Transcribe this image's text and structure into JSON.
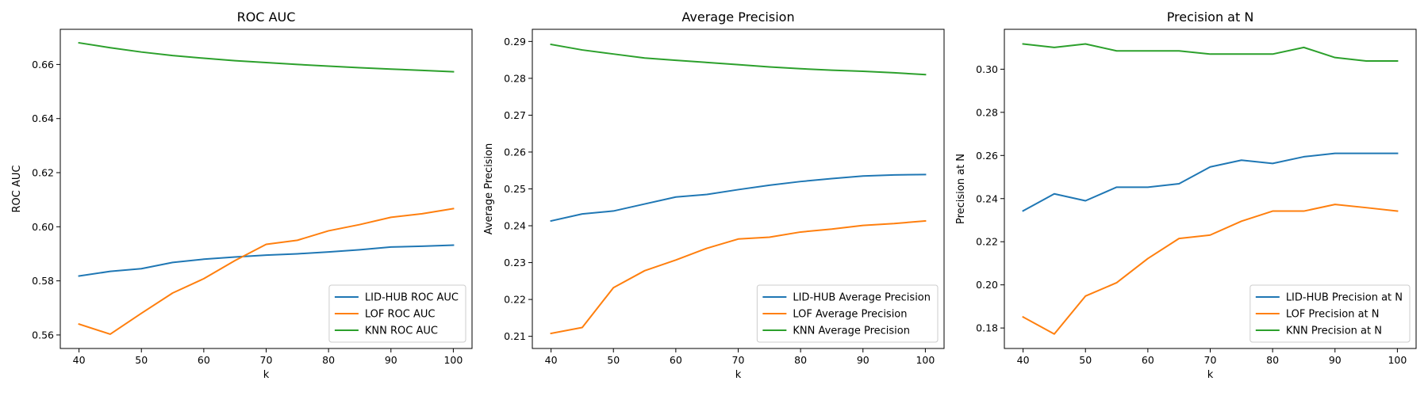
{
  "chart_data": [
    {
      "type": "line",
      "title": "ROC AUC",
      "xlabel": "k",
      "ylabel": "ROC AUC",
      "x": [
        40,
        45,
        50,
        55,
        60,
        65,
        70,
        75,
        80,
        85,
        90,
        95,
        100
      ],
      "xlim": [
        37,
        103
      ],
      "ylim": [
        0.555,
        0.673
      ],
      "xticks": [
        40,
        50,
        60,
        70,
        80,
        90,
        100
      ],
      "yticks": [
        0.56,
        0.58,
        0.6,
        0.62,
        0.64,
        0.66
      ],
      "ytick_labels": [
        "0.56",
        "0.58",
        "0.60",
        "0.62",
        "0.64",
        "0.66"
      ],
      "grid": false,
      "legend": "lower-right",
      "series": [
        {
          "name": "LID-HUB ROC AUC",
          "color": "#1f77b4",
          "values": [
            0.5818,
            0.5835,
            0.5845,
            0.5868,
            0.588,
            0.5888,
            0.5895,
            0.59,
            0.5907,
            0.5915,
            0.5925,
            0.5928,
            0.5932
          ]
        },
        {
          "name": "LOF ROC AUC",
          "color": "#ff7f0e",
          "values": [
            0.564,
            0.5603,
            0.568,
            0.5755,
            0.5808,
            0.5875,
            0.5935,
            0.595,
            0.5985,
            0.6008,
            0.6035,
            0.6048,
            0.6067
          ]
        },
        {
          "name": "KNN ROC AUC",
          "color": "#2ca02c",
          "values": [
            0.668,
            0.6662,
            0.6646,
            0.6633,
            0.6623,
            0.6614,
            0.6607,
            0.66,
            0.6594,
            0.6588,
            0.6583,
            0.6578,
            0.6573
          ]
        }
      ]
    },
    {
      "type": "line",
      "title": "Average Precision",
      "xlabel": "k",
      "ylabel": "Average Precision",
      "x": [
        40,
        45,
        50,
        55,
        60,
        65,
        70,
        75,
        80,
        85,
        90,
        95,
        100
      ],
      "xlim": [
        37,
        103
      ],
      "ylim": [
        0.2067,
        0.2933
      ],
      "xticks": [
        40,
        50,
        60,
        70,
        80,
        90,
        100
      ],
      "yticks": [
        0.21,
        0.22,
        0.23,
        0.24,
        0.25,
        0.26,
        0.27,
        0.28,
        0.29
      ],
      "ytick_labels": [
        "0.21",
        "0.22",
        "0.23",
        "0.24",
        "0.25",
        "0.26",
        "0.27",
        "0.28",
        "0.29"
      ],
      "grid": false,
      "legend": "lower-right",
      "series": [
        {
          "name": "LID-HUB Average Precision",
          "color": "#1f77b4",
          "values": [
            0.2413,
            0.2432,
            0.244,
            0.2459,
            0.2478,
            0.2485,
            0.2498,
            0.251,
            0.252,
            0.2528,
            0.2535,
            0.2538,
            0.2539
          ]
        },
        {
          "name": "LOF Average Precision",
          "color": "#ff7f0e",
          "values": [
            0.2108,
            0.2124,
            0.2232,
            0.2278,
            0.2307,
            0.2339,
            0.2364,
            0.2369,
            0.2383,
            0.2391,
            0.2401,
            0.2406,
            0.2413
          ]
        },
        {
          "name": "KNN Average Precision",
          "color": "#2ca02c",
          "values": [
            0.2892,
            0.2877,
            0.2866,
            0.2855,
            0.2849,
            0.2843,
            0.2837,
            0.2831,
            0.2826,
            0.2822,
            0.2819,
            0.2815,
            0.281
          ]
        }
      ]
    },
    {
      "type": "line",
      "title": "Precision at N",
      "xlabel": "k",
      "ylabel": "Precision at N",
      "x": [
        40,
        45,
        50,
        55,
        60,
        65,
        70,
        75,
        80,
        85,
        90,
        95,
        100
      ],
      "xlim": [
        37,
        103
      ],
      "ylim": [
        0.1705,
        0.3185
      ],
      "xticks": [
        40,
        50,
        60,
        70,
        80,
        90,
        100
      ],
      "yticks": [
        0.18,
        0.2,
        0.22,
        0.24,
        0.26,
        0.28,
        0.3
      ],
      "ytick_labels": [
        "0.18",
        "0.20",
        "0.22",
        "0.24",
        "0.26",
        "0.28",
        "0.30"
      ],
      "grid": false,
      "legend": "lower-right",
      "series": [
        {
          "name": "LID-HUB Precision at N",
          "color": "#1f77b4",
          "values": [
            0.2343,
            0.2422,
            0.239,
            0.2453,
            0.2453,
            0.2469,
            0.2547,
            0.2578,
            0.2563,
            0.2594,
            0.261,
            0.261,
            0.261
          ]
        },
        {
          "name": "LOF Precision at N",
          "color": "#ff7f0e",
          "values": [
            0.1851,
            0.1772,
            0.1948,
            0.201,
            0.2122,
            0.2215,
            0.2231,
            0.2295,
            0.2342,
            0.2342,
            0.2373,
            0.2358,
            0.2342
          ]
        },
        {
          "name": "KNN Precision at N",
          "color": "#2ca02c",
          "values": [
            0.3117,
            0.3101,
            0.3117,
            0.3085,
            0.3085,
            0.3085,
            0.307,
            0.307,
            0.307,
            0.3101,
            0.3054,
            0.3038,
            0.3038
          ]
        }
      ]
    }
  ]
}
